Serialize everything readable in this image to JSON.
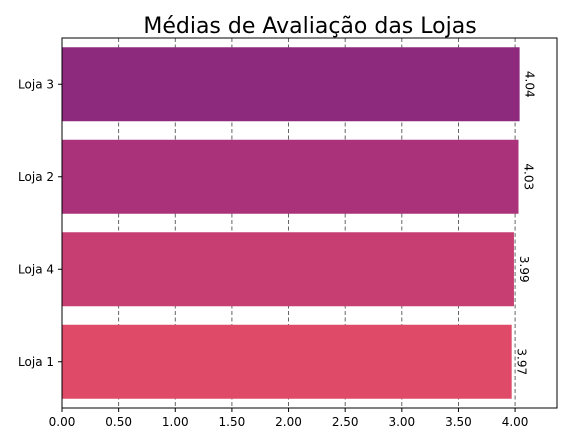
{
  "chart_data": {
    "type": "bar",
    "orientation": "horizontal",
    "title": "Médias de Avaliação das Lojas",
    "xlabel": "",
    "ylabel": "",
    "categories": [
      "Loja 1",
      "Loja 4",
      "Loja 2",
      "Loja 3"
    ],
    "values": [
      3.97,
      3.99,
      4.03,
      4.04
    ],
    "value_labels": [
      "3.97",
      "3.99",
      "4.03",
      "4.04"
    ],
    "bar_colors": [
      "#de4a67",
      "#c73e72",
      "#a9327b",
      "#8e2a7e"
    ],
    "xlim": [
      0,
      4.37
    ],
    "xticks": [
      0,
      0.5,
      1.0,
      1.5,
      2.0,
      2.5,
      3.0,
      3.5,
      4.0
    ],
    "xtick_labels": [
      "0.00",
      "0.50",
      "1.00",
      "1.50",
      "2.00",
      "2.50",
      "3.00",
      "3.50",
      "4.00"
    ],
    "grid": {
      "axis": "x",
      "style": "dashed",
      "color": "#555555"
    }
  }
}
